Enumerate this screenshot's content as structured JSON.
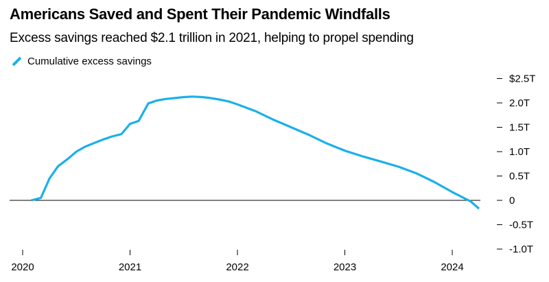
{
  "title": "Americans Saved and Spent Their Pandemic Windfalls",
  "subtitle": "Excess savings reached $2.1 trillion in 2021, helping to propel spending",
  "chart_data": {
    "type": "line",
    "series": [
      {
        "name": "Cumulative excess savings",
        "color": "#1ab0ea",
        "points": [
          [
            2020.08,
            0.0
          ],
          [
            2020.17,
            0.05
          ],
          [
            2020.25,
            0.45
          ],
          [
            2020.33,
            0.7
          ],
          [
            2020.42,
            0.85
          ],
          [
            2020.5,
            1.0
          ],
          [
            2020.58,
            1.1
          ],
          [
            2020.67,
            1.18
          ],
          [
            2020.75,
            1.25
          ],
          [
            2020.83,
            1.31
          ],
          [
            2020.92,
            1.36
          ],
          [
            2021.0,
            1.57
          ],
          [
            2021.08,
            1.63
          ],
          [
            2021.17,
            1.99
          ],
          [
            2021.25,
            2.05
          ],
          [
            2021.33,
            2.08
          ],
          [
            2021.42,
            2.1
          ],
          [
            2021.5,
            2.12
          ],
          [
            2021.58,
            2.13
          ],
          [
            2021.67,
            2.12
          ],
          [
            2021.75,
            2.1
          ],
          [
            2021.83,
            2.07
          ],
          [
            2021.92,
            2.03
          ],
          [
            2022.0,
            1.97
          ],
          [
            2022.17,
            1.83
          ],
          [
            2022.33,
            1.66
          ],
          [
            2022.5,
            1.5
          ],
          [
            2022.67,
            1.34
          ],
          [
            2022.83,
            1.17
          ],
          [
            2023.0,
            1.02
          ],
          [
            2023.17,
            0.9
          ],
          [
            2023.33,
            0.8
          ],
          [
            2023.5,
            0.69
          ],
          [
            2023.67,
            0.55
          ],
          [
            2023.83,
            0.38
          ],
          [
            2024.0,
            0.17
          ],
          [
            2024.17,
            -0.02
          ],
          [
            2024.25,
            -0.17
          ]
        ]
      }
    ],
    "x_ticks": [
      {
        "value": 2020,
        "label": "2020"
      },
      {
        "value": 2021,
        "label": "2021"
      },
      {
        "value": 2022,
        "label": "2022"
      },
      {
        "value": 2023,
        "label": "2023"
      },
      {
        "value": 2024,
        "label": "2024"
      }
    ],
    "y_ticks": [
      {
        "value": 2.5,
        "label": "$2.5T"
      },
      {
        "value": 2.0,
        "label": "2.0T"
      },
      {
        "value": 1.5,
        "label": "1.5T"
      },
      {
        "value": 1.0,
        "label": "1.0T"
      },
      {
        "value": 0.5,
        "label": "0.5T"
      },
      {
        "value": 0,
        "label": "0"
      },
      {
        "value": -0.5,
        "label": "-0.5T"
      },
      {
        "value": -1.0,
        "label": "-1.0T"
      }
    ],
    "xlim": [
      2020,
      2024
    ],
    "ylim": [
      -1.0,
      2.5
    ],
    "y_axis_side": "right",
    "zero_line": true,
    "grid": false,
    "legend_position": "top-left"
  }
}
